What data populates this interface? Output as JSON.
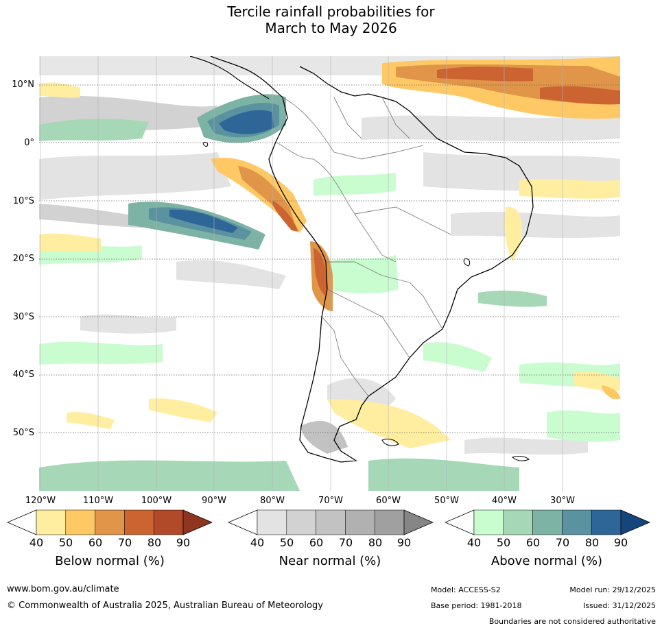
{
  "title": {
    "line1": "Tercile rainfall probabilities for",
    "line2": "March to May 2026"
  },
  "map": {
    "lat_labels": [
      "10°N",
      "0°",
      "10°S",
      "20°S",
      "30°S",
      "40°S",
      "50°S"
    ],
    "lon_labels": [
      "120°W",
      "110°W",
      "100°W",
      "90°W",
      "80°W",
      "70°W",
      "60°W",
      "50°W",
      "40°W",
      "30°W"
    ]
  },
  "colorbars": {
    "below": {
      "title": "Below normal (%)",
      "ticks": [
        "40",
        "50",
        "60",
        "70",
        "80",
        "90"
      ],
      "colors": [
        "#ffffff",
        "#ffeda0",
        "#fec965",
        "#e09548",
        "#cc6431",
        "#b04a28",
        "#8f3520"
      ]
    },
    "near": {
      "title": "Near normal (%)",
      "ticks": [
        "40",
        "50",
        "60",
        "70",
        "80",
        "90"
      ],
      "colors": [
        "#ffffff",
        "#e3e3e3",
        "#d2d2d2",
        "#c2c2c2",
        "#b1b1b1",
        "#a0a0a0",
        "#868686"
      ]
    },
    "above": {
      "title": "Above normal (%)",
      "ticks": [
        "40",
        "50",
        "60",
        "70",
        "80",
        "90"
      ],
      "colors": [
        "#ffffff",
        "#c9fccf",
        "#a6d8b8",
        "#7db3a5",
        "#5a92a0",
        "#2e6698",
        "#14457b"
      ]
    }
  },
  "footer": {
    "website": "www.bom.gov.au/climate",
    "copyright": "© Commonwealth of Australia 2025, Australian Bureau of Meteorology",
    "model": "Model: ACCESS-S2",
    "base_period": "Base period: 1981-2018",
    "model_run": "Model run: 29/12/2025",
    "issued": "Issued: 31/12/2025",
    "disclaimer": "Boundaries are not considered authoritative"
  }
}
